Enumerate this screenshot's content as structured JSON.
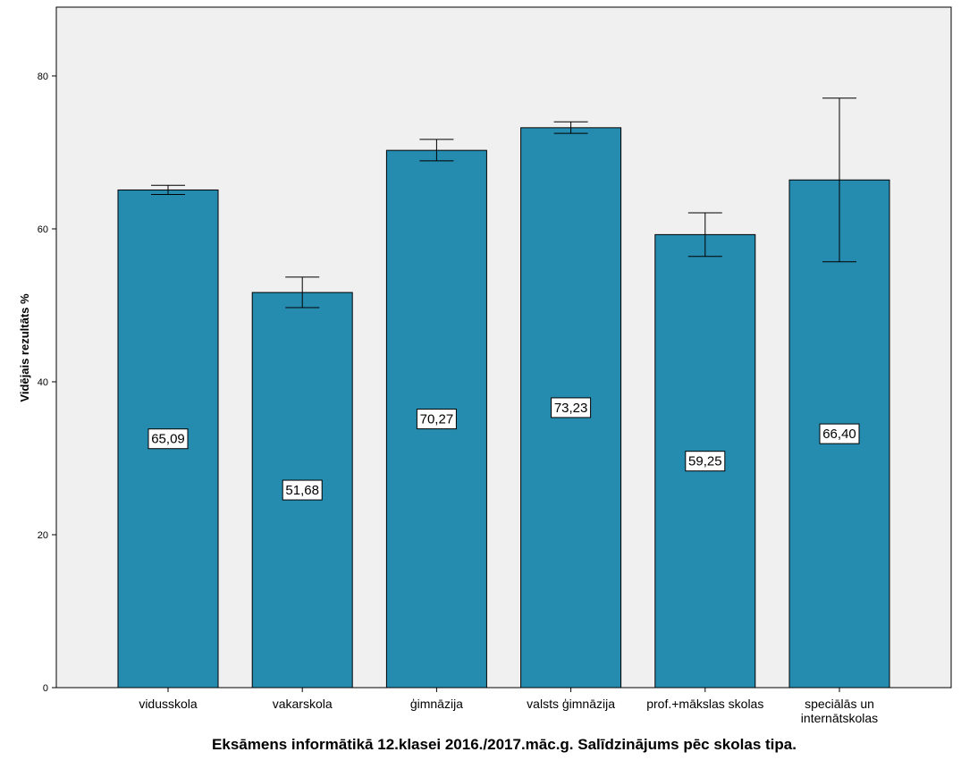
{
  "chart_data": {
    "type": "bar",
    "title": "Eksāmens informātikā 12.klasei 2016./2017.māc.g. Salīdzinājums pēc skolas tipa.",
    "xlabel": "",
    "ylabel": "Vidējais rezultāts %",
    "ylim": [
      0,
      89
    ],
    "yticks": [
      0,
      20,
      40,
      60,
      80
    ],
    "grid": false,
    "categories": [
      [
        "vidusskola"
      ],
      [
        "vakarskola"
      ],
      [
        "ģimnāzija"
      ],
      [
        "valsts ģimnāzija"
      ],
      [
        "prof.+mākslas skolas"
      ],
      [
        "speciālās un",
        "internātskolas"
      ]
    ],
    "values": [
      65.09,
      51.68,
      70.27,
      73.23,
      59.25,
      66.4
    ],
    "data_labels": [
      "65,09",
      "51,68",
      "70,27",
      "73,23",
      "59,25",
      "66,40"
    ],
    "error_low": [
      64.5,
      49.7,
      68.9,
      72.5,
      56.4,
      55.7
    ],
    "error_high": [
      65.7,
      53.7,
      71.7,
      74.0,
      62.1,
      77.1
    ],
    "bar_color": "#268caf",
    "plot_background": "#f0f0f0"
  }
}
